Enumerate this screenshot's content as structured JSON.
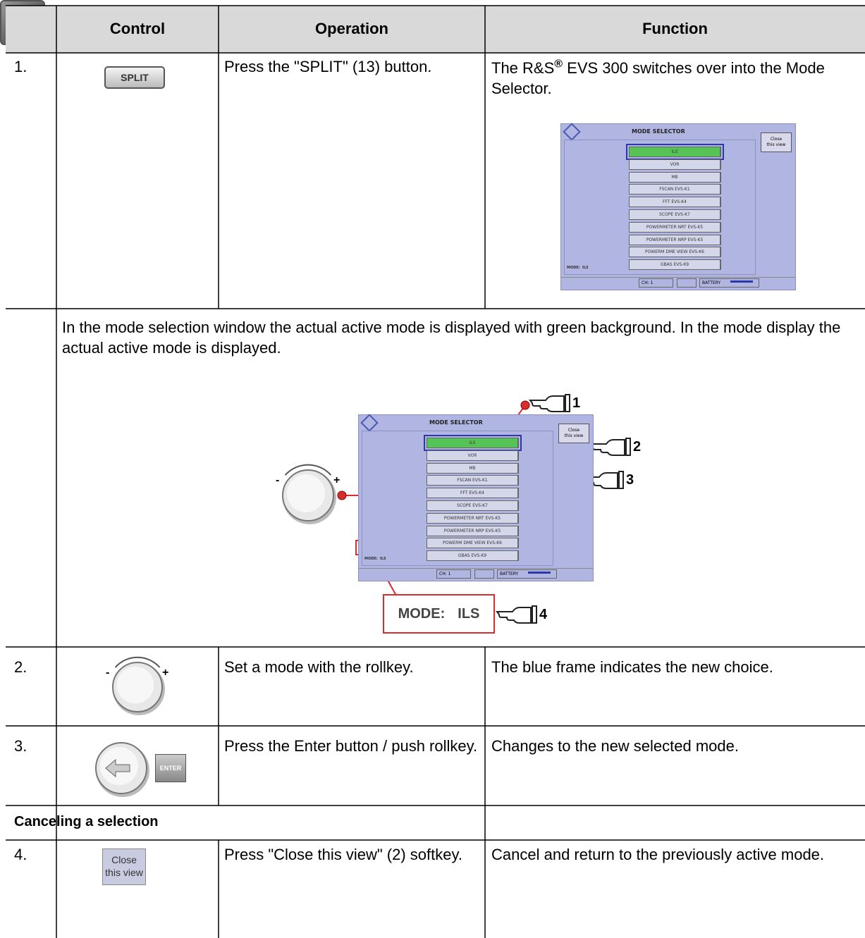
{
  "table": {
    "header": [
      "Control",
      "Operation",
      "Function"
    ],
    "rows": [
      {
        "number": "1.",
        "control": "SPLIT",
        "operation": "Press the \"SPLIT\" (13) button.",
        "function": {
          "before": "The R&S",
          "superscript": "®",
          "after": " EVS 300 switches over into the Mode Selector."
        }
      },
      {
        "number": "2.",
        "operation": "Set a mode with the rollkey.",
        "function": "The blue frame indicates the new choice."
      },
      {
        "number": "3.",
        "control": "ENTER",
        "operation": "Press the Enter button / push rollkey.",
        "function": "Changes to the new selected mode."
      },
      {
        "number": "4.",
        "control": [
          "Close",
          "this view"
        ],
        "operation": "Press \"Close this view\" (2) softkey.",
        "function": "Cancel and return to the previously active mode."
      }
    ],
    "note": "In the mode selection window the actual active mode is displayed with green background. In the mode display the actual active mode is displayed.",
    "section": "Canceling a selection"
  },
  "screen": {
    "title": "MODE SELECTOR",
    "close_button": [
      "Close",
      "this view"
    ],
    "modes": [
      "ILS",
      "VOR",
      "MB",
      "FSCAN  EVS-K1",
      "FFT  EVS-K4",
      "SCOPE  EVS-K7",
      "POWERMETER NRT  EVS-K5",
      "POWERMETER NRP  EVS-K5",
      "POWERM DME VIEW EVS-K6",
      "GBAS  EVS-K9"
    ],
    "channel": "CH: 1",
    "battery": "BATTERY"
  },
  "mode_display": {
    "label": "MODE:",
    "value": "ILS"
  },
  "rollkey": {
    "minus": "-",
    "plus": "+"
  },
  "callouts": [
    "1",
    "2",
    "3",
    "4"
  ]
}
